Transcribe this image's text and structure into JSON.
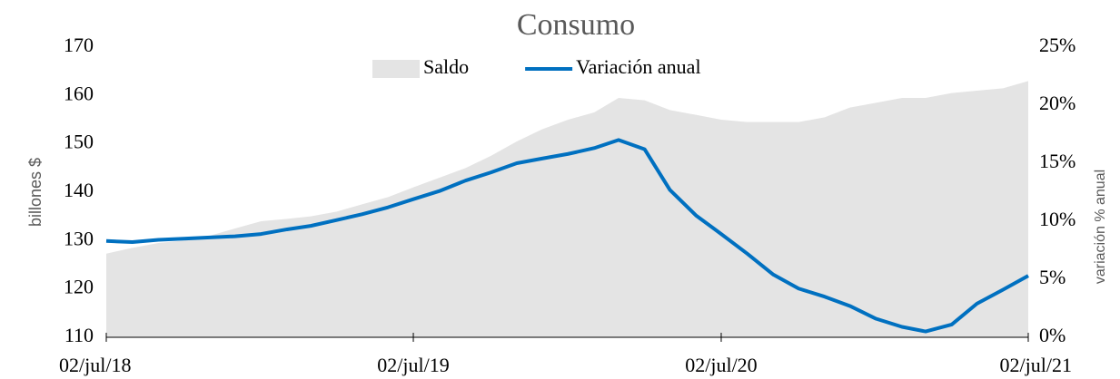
{
  "chart_data": {
    "type": "combo",
    "title": "Consumo",
    "ylabel": "billones $",
    "y2label": "variación % anual",
    "x": [
      "2018-07-02",
      "2018-08-02",
      "2018-09-02",
      "2018-10-02",
      "2018-11-02",
      "2018-12-02",
      "2019-01-02",
      "2019-02-02",
      "2019-03-02",
      "2019-04-02",
      "2019-05-02",
      "2019-06-02",
      "2019-07-02",
      "2019-08-02",
      "2019-09-02",
      "2019-10-02",
      "2019-11-02",
      "2019-12-02",
      "2020-01-02",
      "2020-02-02",
      "2020-03-02",
      "2020-04-02",
      "2020-05-02",
      "2020-06-02",
      "2020-07-02",
      "2020-08-02",
      "2020-09-02",
      "2020-10-02",
      "2020-11-02",
      "2020-12-02",
      "2021-01-02",
      "2021-02-02",
      "2021-03-02",
      "2021-04-02",
      "2021-05-02",
      "2021-06-02",
      "2021-07-02"
    ],
    "xlim": [
      "2018-07-02",
      "2021-07-02"
    ],
    "xticks": [
      {
        "value": "2018-07-02",
        "label": "02/jul/18"
      },
      {
        "value": "2019-07-02",
        "label": "02/jul/19"
      },
      {
        "value": "2020-07-02",
        "label": "02/jul/20"
      },
      {
        "value": "2021-07-02",
        "label": "02/jul/21"
      }
    ],
    "ylim": [
      110,
      170
    ],
    "yticks": [
      110,
      120,
      130,
      140,
      150,
      160,
      170
    ],
    "y2lim": [
      0,
      25
    ],
    "y2ticks": [
      {
        "value": 0,
        "label": "0%"
      },
      {
        "value": 5,
        "label": "5%"
      },
      {
        "value": 10,
        "label": "10%"
      },
      {
        "value": 15,
        "label": "15%"
      },
      {
        "value": 20,
        "label": "20%"
      },
      {
        "value": 25,
        "label": "25%"
      }
    ],
    "legend": "top",
    "series": [
      {
        "name": "Saldo",
        "type": "area",
        "axis": "y",
        "color": "#e4e4e4",
        "values": [
          127.3,
          128.5,
          129.5,
          130,
          131,
          132.5,
          134,
          134.5,
          135,
          136,
          137.5,
          139,
          141,
          143,
          145,
          147.5,
          150.5,
          153,
          155,
          156.5,
          159.5,
          159,
          157,
          156,
          155,
          154.5,
          154.5,
          154.5,
          155.5,
          157.5,
          158.5,
          159.5,
          159.5,
          160.5,
          161,
          161.5,
          163
        ]
      },
      {
        "name": "Variación anual",
        "type": "line",
        "axis": "y2",
        "color": "#0070c0",
        "values": [
          8.3,
          8.2,
          8.4,
          8.5,
          8.6,
          8.7,
          8.9,
          9.3,
          9.6,
          10.1,
          10.6,
          11.2,
          11.9,
          12.6,
          13.5,
          14.2,
          15.0,
          15.4,
          15.8,
          16.3,
          17.0,
          16.2,
          12.7,
          10.5,
          8.9,
          7.2,
          5.4,
          4.2,
          3.5,
          2.7,
          1.6,
          0.9,
          0.5,
          1.1,
          2.9,
          4.1,
          5.3
        ]
      }
    ]
  }
}
